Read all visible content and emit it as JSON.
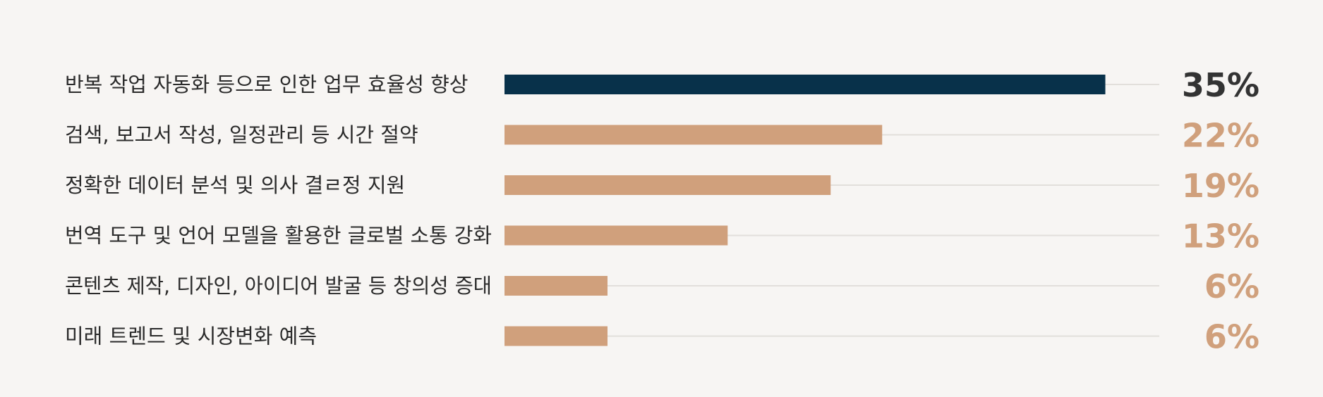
{
  "chart_data": {
    "type": "bar",
    "orientation": "horizontal",
    "categories": [
      "반복 작업 자동화 등으로 인한 업무 효율성 향상",
      "검색, 보고서 작성, 일정관리 등 시간 절약",
      "정확한 데이터 분석 및 의사 결ㄹ정 지원",
      "번역 도구 및 언어 모델을 활용한 글로벌 소통 강화",
      "콘텐츠 제작, 디자인, 아이디어 발굴 등 창의성 증대",
      "미래 트렌드 및 시장변화 예측"
    ],
    "values": [
      35,
      22,
      19,
      13,
      6,
      6
    ],
    "value_labels": [
      "35%",
      "22%",
      "19%",
      "13%",
      "6%",
      "6%"
    ],
    "unit": "%",
    "xlim": [
      0,
      36.5
    ],
    "grid": false,
    "legend": "none",
    "colors": {
      "highlight": "#08314a",
      "default": "#d0a07c",
      "highlight_label": "#333333",
      "default_label": "#d0a07c",
      "track": "#e2dfdb"
    }
  }
}
